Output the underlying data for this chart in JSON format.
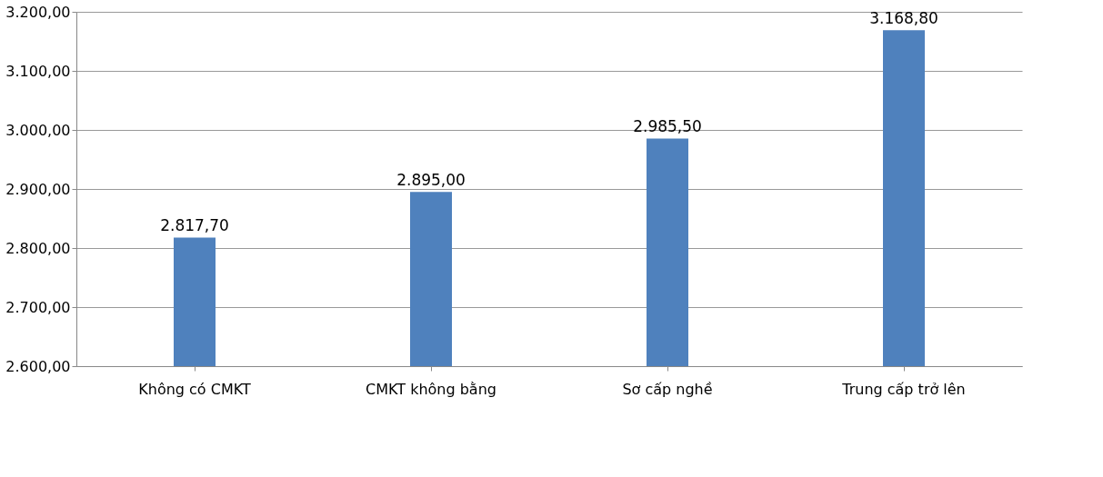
{
  "chart_data": {
    "type": "bar",
    "categories": [
      "Không có CMKT",
      "CMKT không bằng",
      "Sơ cấp nghề",
      "Trung cấp trở lên"
    ],
    "values": [
      2817.7,
      2895.0,
      2985.5,
      3168.8
    ],
    "value_labels": [
      "2.817,70",
      "2.895,00",
      "2.985,50",
      "3.168,80"
    ],
    "color": "#4f81bd",
    "ylim": [
      2600,
      3200
    ],
    "yticks": [
      {
        "value": 2600,
        "label": "2.600,00"
      },
      {
        "value": 2700,
        "label": "2.700,00"
      },
      {
        "value": 2800,
        "label": "2.800,00"
      },
      {
        "value": 2900,
        "label": "2.900,00"
      },
      {
        "value": 3000,
        "label": "3.000,00"
      },
      {
        "value": 3100,
        "label": "3.100,00"
      },
      {
        "value": 3200,
        "label": "3.200,00"
      }
    ],
    "grid": "y"
  }
}
